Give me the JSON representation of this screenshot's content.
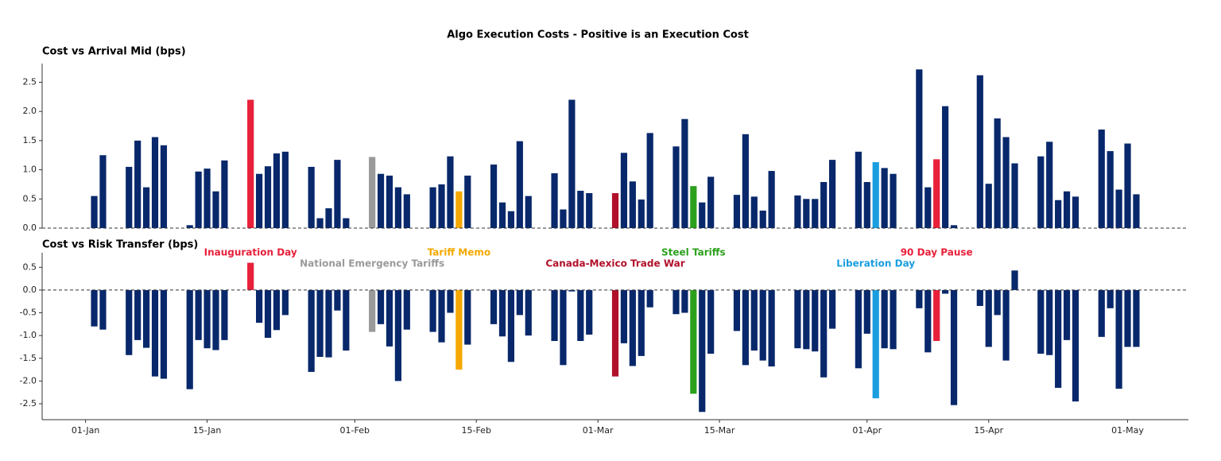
{
  "title": "Algo Execution Costs - Positive is an Execution Cost",
  "chart_data": [
    {
      "type": "bar",
      "title": "Cost vs Arrival Mid (bps)",
      "color": "#08286b",
      "zero_line": "dashed",
      "x": [
        "02-Jan",
        "03-Jan",
        "06-Jan",
        "07-Jan",
        "08-Jan",
        "09-Jan",
        "10-Jan",
        "13-Jan",
        "14-Jan",
        "15-Jan",
        "16-Jan",
        "17-Jan",
        "20-Jan",
        "21-Jan",
        "22-Jan",
        "23-Jan",
        "24-Jan",
        "27-Jan",
        "28-Jan",
        "29-Jan",
        "30-Jan",
        "31-Jan",
        "03-Feb",
        "04-Feb",
        "05-Feb",
        "06-Feb",
        "07-Feb",
        "10-Feb",
        "11-Feb",
        "12-Feb",
        "13-Feb",
        "14-Feb",
        "17-Feb",
        "18-Feb",
        "19-Feb",
        "20-Feb",
        "21-Feb",
        "24-Feb",
        "25-Feb",
        "26-Feb",
        "27-Feb",
        "28-Feb",
        "03-Mar",
        "04-Mar",
        "05-Mar",
        "06-Mar",
        "07-Mar",
        "10-Mar",
        "11-Mar",
        "12-Mar",
        "13-Mar",
        "14-Mar",
        "17-Mar",
        "18-Mar",
        "19-Mar",
        "20-Mar",
        "21-Mar",
        "24-Mar",
        "25-Mar",
        "26-Mar",
        "27-Mar",
        "28-Mar",
        "31-Mar",
        "01-Apr",
        "02-Apr",
        "03-Apr",
        "04-Apr",
        "07-Apr",
        "08-Apr",
        "09-Apr",
        "10-Apr",
        "11-Apr",
        "14-Apr",
        "15-Apr",
        "16-Apr",
        "17-Apr",
        "18-Apr",
        "21-Apr",
        "22-Apr",
        "23-Apr",
        "24-Apr",
        "25-Apr",
        "28-Apr",
        "29-Apr",
        "30-Apr",
        "01-May",
        "02-May"
      ],
      "values": [
        0.55,
        1.25,
        1.05,
        1.5,
        0.7,
        1.56,
        1.42,
        0.05,
        0.97,
        1.02,
        0.63,
        1.16,
        2.2,
        0.93,
        1.06,
        1.28,
        1.31,
        1.05,
        0.17,
        0.34,
        1.17,
        0.17,
        1.22,
        0.93,
        0.9,
        0.7,
        0.58,
        0.7,
        0.75,
        1.23,
        0.63,
        0.9,
        1.09,
        0.44,
        0.29,
        1.49,
        0.55,
        0.94,
        0.32,
        2.2,
        0.64,
        0.6,
        0.6,
        1.29,
        0.8,
        0.49,
        1.63,
        1.4,
        1.87,
        0.72,
        0.44,
        0.88,
        0.57,
        1.61,
        0.54,
        0.3,
        0.98,
        0.56,
        0.5,
        0.5,
        0.79,
        1.17,
        1.31,
        0.79,
        1.13,
        1.03,
        0.93,
        2.72,
        0.7,
        1.18,
        2.09,
        0.05,
        2.62,
        0.76,
        1.88,
        1.56,
        1.11,
        1.23,
        1.48,
        0.48,
        0.63,
        0.54,
        1.69,
        1.32,
        0.66,
        1.45,
        0.58
      ],
      "xlim": [
        "27-Dec",
        "08-May"
      ],
      "ylim": [
        0,
        2.82
      ],
      "yticks": [
        {
          "value": 0,
          "label": "0.0"
        },
        0.5,
        {
          "value": 1,
          "label": "1.0"
        },
        1.5,
        {
          "value": 2,
          "label": "2.0"
        },
        2.5
      ]
    },
    {
      "type": "bar",
      "title": "Cost vs Risk Transfer (bps)",
      "color": "#08286b",
      "zero_line": "dashed",
      "x": [
        "02-Jan",
        "03-Jan",
        "06-Jan",
        "07-Jan",
        "08-Jan",
        "09-Jan",
        "10-Jan",
        "13-Jan",
        "14-Jan",
        "15-Jan",
        "16-Jan",
        "17-Jan",
        "20-Jan",
        "21-Jan",
        "22-Jan",
        "23-Jan",
        "24-Jan",
        "27-Jan",
        "28-Jan",
        "29-Jan",
        "30-Jan",
        "31-Jan",
        "03-Feb",
        "04-Feb",
        "05-Feb",
        "06-Feb",
        "07-Feb",
        "10-Feb",
        "11-Feb",
        "12-Feb",
        "13-Feb",
        "14-Feb",
        "17-Feb",
        "18-Feb",
        "19-Feb",
        "20-Feb",
        "21-Feb",
        "24-Feb",
        "25-Feb",
        "26-Feb",
        "27-Feb",
        "28-Feb",
        "03-Mar",
        "04-Mar",
        "05-Mar",
        "06-Mar",
        "07-Mar",
        "10-Mar",
        "11-Mar",
        "12-Mar",
        "13-Mar",
        "14-Mar",
        "17-Mar",
        "18-Mar",
        "19-Mar",
        "20-Mar",
        "21-Mar",
        "24-Mar",
        "25-Mar",
        "26-Mar",
        "27-Mar",
        "28-Mar",
        "31-Mar",
        "01-Apr",
        "02-Apr",
        "03-Apr",
        "04-Apr",
        "07-Apr",
        "08-Apr",
        "09-Apr",
        "10-Apr",
        "11-Apr",
        "14-Apr",
        "15-Apr",
        "16-Apr",
        "17-Apr",
        "18-Apr",
        "21-Apr",
        "22-Apr",
        "23-Apr",
        "24-Apr",
        "25-Apr",
        "28-Apr",
        "29-Apr",
        "30-Apr",
        "01-May",
        "02-May"
      ],
      "values": [
        -0.8,
        -0.87,
        -1.43,
        -1.1,
        -1.27,
        -1.9,
        -1.95,
        -2.18,
        -1.1,
        -1.28,
        -1.32,
        -1.1,
        0.6,
        -0.72,
        -1.05,
        -0.88,
        -0.55,
        -1.8,
        -1.47,
        -1.48,
        -0.45,
        -1.33,
        -0.92,
        -0.75,
        -1.24,
        -2.0,
        -0.87,
        -0.92,
        -1.15,
        -0.5,
        -1.75,
        -1.2,
        -0.75,
        -1.02,
        -1.58,
        -0.55,
        -1.0,
        -1.12,
        -1.65,
        -0.03,
        -1.12,
        -0.98,
        -1.9,
        -1.17,
        -1.67,
        -1.45,
        -0.38,
        -0.53,
        -0.5,
        -2.28,
        -2.68,
        -1.4,
        -0.9,
        -1.65,
        -1.33,
        -1.55,
        -1.68,
        -1.28,
        -1.3,
        -1.35,
        -1.92,
        -0.85,
        -1.72,
        -0.96,
        -2.38,
        -1.28,
        -1.3,
        -0.4,
        -1.37,
        -1.12,
        -0.08,
        -2.53,
        -0.35,
        -1.25,
        -0.55,
        -1.55,
        0.43,
        -1.4,
        -1.43,
        -2.15,
        -1.1,
        -2.45,
        -1.03,
        -0.4,
        -2.17,
        -1.25,
        -1.25
      ],
      "xlim": [
        "27-Dec",
        "08-May"
      ],
      "xticks": [
        "01-Jan",
        "15-Jan",
        "01-Feb",
        "15-Feb",
        "01-Mar",
        "15-Mar",
        "01-Apr",
        "15-Apr",
        "01-May"
      ],
      "ylim": [
        -2.85,
        0.82
      ],
      "yticks": [
        -2.5,
        {
          "value": -2,
          "label": "-2.0"
        },
        -1.5,
        {
          "value": -1,
          "label": "-1.0"
        },
        -0.5,
        {
          "value": 0,
          "label": "0.0"
        },
        0.5
      ],
      "annotations": [
        {
          "text": "Inauguration Day",
          "x": "20-Jan",
          "color": "#e8203a"
        },
        {
          "text": "National Emergency Tariffs",
          "x": "03-Feb",
          "color": "#9a9a9a"
        },
        {
          "text": "Tariff Memo",
          "x": "13-Feb",
          "color": "#f5a800"
        },
        {
          "text": "Canada-Mexico Trade War",
          "x": "03-Mar",
          "color": "#b0102a"
        },
        {
          "text": "Steel Tariffs",
          "x": "12-Mar",
          "color": "#2ca01c"
        },
        {
          "text": "Liberation Day",
          "x": "02-Apr",
          "color": "#1a9ee0"
        },
        {
          "text": "90 Day Pause",
          "x": "09-Apr",
          "color": "#e8203a"
        }
      ]
    }
  ]
}
